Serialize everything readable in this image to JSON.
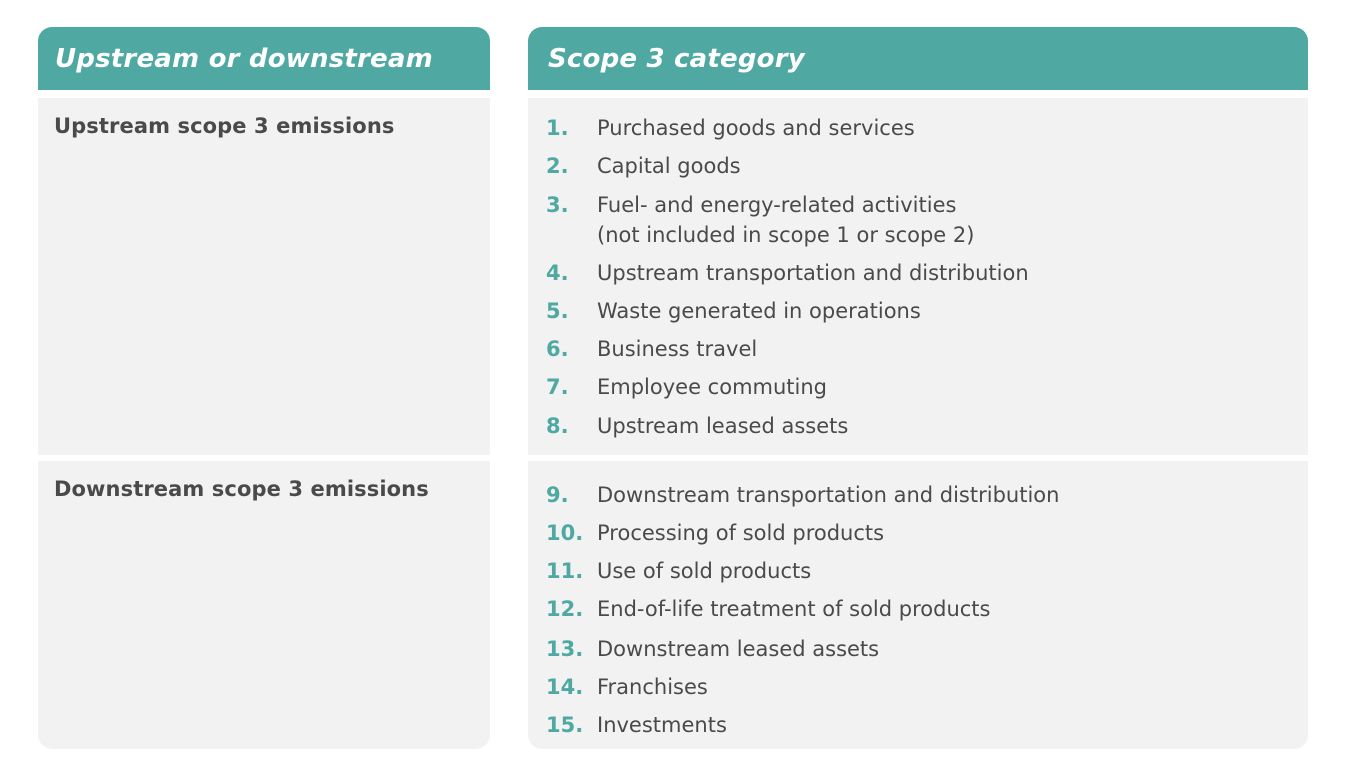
{
  "headers": {
    "left": "Upstream or downstream",
    "right": "Scope 3 category"
  },
  "groups": {
    "upstream": {
      "label": "Upstream scope 3 emissions",
      "items": [
        {
          "num": "1.",
          "text": "Purchased goods and services"
        },
        {
          "num": "2.",
          "text": "Capital goods"
        },
        {
          "num": "3.",
          "text": "Fuel- and energy-related activities",
          "text2": "(not included in scope 1 or scope 2)"
        },
        {
          "num": "4.",
          "text": "Upstream transportation and distribution"
        },
        {
          "num": "5.",
          "text": "Waste generated in operations"
        },
        {
          "num": "6.",
          "text": "Business travel"
        },
        {
          "num": "7.",
          "text": "Employee commuting"
        },
        {
          "num": "8.",
          "text": "Upstream leased assets"
        }
      ]
    },
    "downstream": {
      "label": "Downstream scope 3 emissions",
      "items": [
        {
          "num": "9.",
          "text": "Downstream transportation and distribution"
        },
        {
          "num": "10.",
          "text": "Processing of sold products"
        },
        {
          "num": "11.",
          "text": "Use of sold products"
        },
        {
          "num": "12.",
          "text": "End-of-life treatment of sold products"
        },
        {
          "num": "13.",
          "text": "Downstream leased assets"
        },
        {
          "num": "14.",
          "text": "Franchises"
        },
        {
          "num": "15.",
          "text": "Investments"
        }
      ]
    }
  },
  "colors": {
    "accent": "#4fa9a2",
    "cell_background": "#f2f2f2",
    "text": "#4a4a4a"
  }
}
